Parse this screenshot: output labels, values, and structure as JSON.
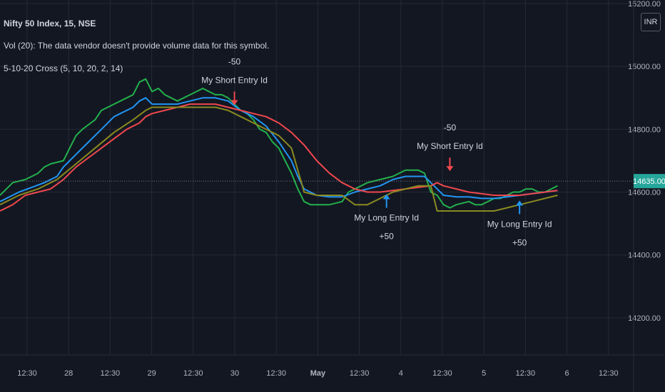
{
  "legend": {
    "symbol": "Nifty 50 Index, 15, NSE",
    "volume_note": "Vol (20): The data vendor doesn't provide volume data for this symbol.",
    "indicator": "5-10-20 Cross (5, 10, 20, 2, 14)"
  },
  "currency_button": "INR",
  "colors": {
    "background": "#131722",
    "grid": "#262a36",
    "axis_text": "#b2b5be",
    "green": "#22b14c",
    "blue": "#2196f3",
    "red": "#f0484d",
    "gold": "#8a8a20",
    "price_tag": "#26a69a"
  },
  "chart_data": {
    "type": "line",
    "title": "",
    "xlabel": "",
    "ylabel": "",
    "ylim": [
      14100,
      15200
    ],
    "y_ticks": [
      "15200.00",
      "15000.00",
      "14800.00",
      "14600.00",
      "14400.00",
      "14200.00"
    ],
    "x_ticks": [
      "12:30",
      "28",
      "12:30",
      "29",
      "12:30",
      "30",
      "12:30",
      "May",
      "12:30",
      "4",
      "12:30",
      "5",
      "12:30",
      "6",
      "12:30"
    ],
    "last_price": "14635.00",
    "x_index_range": [
      0,
      100
    ],
    "series": [
      {
        "color": "#22b14c",
        "points": [
          [
            0,
            14590
          ],
          [
            2,
            14630
          ],
          [
            4,
            14640
          ],
          [
            6,
            14660
          ],
          [
            7,
            14680
          ],
          [
            8,
            14690
          ],
          [
            10,
            14700
          ],
          [
            11,
            14740
          ],
          [
            12,
            14780
          ],
          [
            13,
            14800
          ],
          [
            15,
            14830
          ],
          [
            16,
            14860
          ],
          [
            17,
            14870
          ],
          [
            18,
            14880
          ],
          [
            20,
            14900
          ],
          [
            21,
            14910
          ],
          [
            22,
            14950
          ],
          [
            23,
            14960
          ],
          [
            24,
            14920
          ],
          [
            25,
            14930
          ],
          [
            26,
            14910
          ],
          [
            27,
            14900
          ],
          [
            28,
            14890
          ],
          [
            29,
            14900
          ],
          [
            30,
            14910
          ],
          [
            31,
            14920
          ],
          [
            32,
            14930
          ],
          [
            33,
            14920
          ],
          [
            34,
            14910
          ],
          [
            35,
            14910
          ],
          [
            36,
            14900
          ],
          [
            37,
            14880
          ],
          [
            38,
            14860
          ],
          [
            39,
            14850
          ],
          [
            40,
            14830
          ],
          [
            41,
            14800
          ],
          [
            42,
            14790
          ],
          [
            43,
            14760
          ],
          [
            44,
            14740
          ],
          [
            45,
            14700
          ],
          [
            46,
            14660
          ],
          [
            47,
            14610
          ],
          [
            48,
            14570
          ],
          [
            49,
            14560
          ],
          [
            50,
            14560
          ],
          [
            52,
            14560
          ],
          [
            54,
            14570
          ],
          [
            55,
            14600
          ],
          [
            56,
            14610
          ],
          [
            57,
            14620
          ],
          [
            58,
            14630
          ],
          [
            60,
            14640
          ],
          [
            62,
            14650
          ],
          [
            63,
            14660
          ],
          [
            64,
            14670
          ],
          [
            65,
            14670
          ],
          [
            66,
            14670
          ],
          [
            67,
            14660
          ],
          [
            68,
            14600
          ],
          [
            69,
            14590
          ],
          [
            70,
            14560
          ],
          [
            71,
            14550
          ],
          [
            72,
            14560
          ],
          [
            74,
            14570
          ],
          [
            75,
            14560
          ],
          [
            76,
            14560
          ],
          [
            77,
            14570
          ],
          [
            78,
            14580
          ],
          [
            79,
            14580
          ],
          [
            80,
            14590
          ],
          [
            81,
            14600
          ],
          [
            82,
            14600
          ],
          [
            83,
            14610
          ],
          [
            84,
            14610
          ],
          [
            85,
            14600
          ],
          [
            86,
            14600
          ],
          [
            87,
            14610
          ],
          [
            88,
            14620
          ]
        ]
      },
      {
        "color": "#2196f3",
        "points": [
          [
            0,
            14570
          ],
          [
            3,
            14600
          ],
          [
            5,
            14615
          ],
          [
            7,
            14630
          ],
          [
            9,
            14650
          ],
          [
            10,
            14680
          ],
          [
            12,
            14720
          ],
          [
            14,
            14760
          ],
          [
            16,
            14800
          ],
          [
            18,
            14840
          ],
          [
            20,
            14860
          ],
          [
            21,
            14870
          ],
          [
            22,
            14890
          ],
          [
            23,
            14900
          ],
          [
            24,
            14880
          ],
          [
            26,
            14880
          ],
          [
            28,
            14880
          ],
          [
            30,
            14890
          ],
          [
            32,
            14900
          ],
          [
            34,
            14900
          ],
          [
            36,
            14890
          ],
          [
            38,
            14860
          ],
          [
            40,
            14840
          ],
          [
            42,
            14810
          ],
          [
            44,
            14760
          ],
          [
            46,
            14700
          ],
          [
            47,
            14650
          ],
          [
            48,
            14610
          ],
          [
            50,
            14590
          ],
          [
            52,
            14585
          ],
          [
            54,
            14585
          ],
          [
            56,
            14600
          ],
          [
            58,
            14610
          ],
          [
            60,
            14620
          ],
          [
            62,
            14640
          ],
          [
            64,
            14650
          ],
          [
            66,
            14650
          ],
          [
            67,
            14650
          ],
          [
            68,
            14630
          ],
          [
            69,
            14610
          ],
          [
            70,
            14590
          ],
          [
            72,
            14585
          ],
          [
            74,
            14585
          ],
          [
            76,
            14580
          ],
          [
            78,
            14580
          ],
          [
            80,
            14585
          ],
          [
            82,
            14590
          ],
          [
            84,
            14595
          ],
          [
            86,
            14600
          ],
          [
            88,
            14605
          ]
        ]
      },
      {
        "color": "#f0484d",
        "points": [
          [
            0,
            14540
          ],
          [
            2,
            14560
          ],
          [
            4,
            14590
          ],
          [
            6,
            14600
          ],
          [
            8,
            14610
          ],
          [
            10,
            14640
          ],
          [
            12,
            14680
          ],
          [
            14,
            14710
          ],
          [
            16,
            14740
          ],
          [
            18,
            14770
          ],
          [
            20,
            14800
          ],
          [
            22,
            14820
          ],
          [
            23,
            14840
          ],
          [
            24,
            14850
          ],
          [
            26,
            14860
          ],
          [
            28,
            14870
          ],
          [
            30,
            14880
          ],
          [
            32,
            14880
          ],
          [
            34,
            14880
          ],
          [
            36,
            14870
          ],
          [
            38,
            14860
          ],
          [
            40,
            14850
          ],
          [
            42,
            14840
          ],
          [
            44,
            14820
          ],
          [
            46,
            14790
          ],
          [
            48,
            14750
          ],
          [
            50,
            14700
          ],
          [
            52,
            14660
          ],
          [
            54,
            14630
          ],
          [
            56,
            14610
          ],
          [
            58,
            14600
          ],
          [
            60,
            14600
          ],
          [
            62,
            14605
          ],
          [
            64,
            14610
          ],
          [
            66,
            14615
          ],
          [
            68,
            14620
          ],
          [
            69,
            14630
          ],
          [
            70,
            14620
          ],
          [
            72,
            14610
          ],
          [
            74,
            14600
          ],
          [
            76,
            14595
          ],
          [
            78,
            14590
          ],
          [
            80,
            14590
          ],
          [
            82,
            14590
          ],
          [
            84,
            14595
          ],
          [
            86,
            14600
          ],
          [
            88,
            14605
          ]
        ]
      },
      {
        "color": "#8a8a20",
        "points": [
          [
            0,
            14560
          ],
          [
            3,
            14590
          ],
          [
            6,
            14610
          ],
          [
            9,
            14640
          ],
          [
            12,
            14690
          ],
          [
            15,
            14740
          ],
          [
            18,
            14790
          ],
          [
            21,
            14830
          ],
          [
            23,
            14860
          ],
          [
            24,
            14870
          ],
          [
            26,
            14870
          ],
          [
            28,
            14870
          ],
          [
            30,
            14870
          ],
          [
            32,
            14870
          ],
          [
            34,
            14870
          ],
          [
            36,
            14860
          ],
          [
            38,
            14840
          ],
          [
            40,
            14820
          ],
          [
            42,
            14800
          ],
          [
            44,
            14780
          ],
          [
            46,
            14740
          ],
          [
            48,
            14600
          ],
          [
            50,
            14590
          ],
          [
            52,
            14590
          ],
          [
            54,
            14590
          ],
          [
            56,
            14560
          ],
          [
            58,
            14560
          ],
          [
            60,
            14580
          ],
          [
            62,
            14600
          ],
          [
            64,
            14610
          ],
          [
            66,
            14620
          ],
          [
            68,
            14620
          ],
          [
            69,
            14540
          ],
          [
            70,
            14540
          ],
          [
            72,
            14540
          ],
          [
            74,
            14540
          ],
          [
            76,
            14540
          ],
          [
            78,
            14540
          ],
          [
            80,
            14550
          ],
          [
            82,
            14560
          ],
          [
            84,
            14570
          ],
          [
            86,
            14580
          ],
          [
            88,
            14590
          ]
        ]
      }
    ],
    "markers": [
      {
        "type": "short",
        "x": 37,
        "y": 14870,
        "labels": [
          "-50",
          "My Short Entry Id"
        ]
      },
      {
        "type": "short",
        "x": 71,
        "y": 14660,
        "labels": [
          "-50",
          "My Short Entry Id"
        ]
      },
      {
        "type": "long",
        "x": 61,
        "y": 14600,
        "labels": [
          "My Long Entry Id",
          "+50"
        ]
      },
      {
        "type": "long",
        "x": 82,
        "y": 14580,
        "labels": [
          "My Long Entry Id",
          "+50"
        ]
      }
    ]
  }
}
